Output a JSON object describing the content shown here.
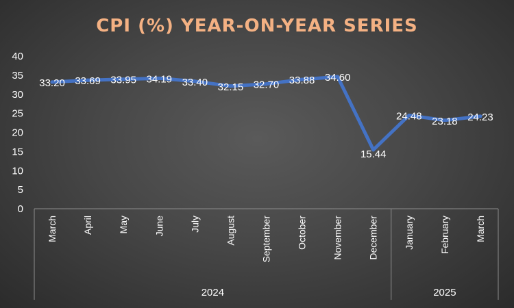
{
  "chart_data": {
    "type": "line",
    "title": "CPI (%) YEAR-ON-YEAR SERIES",
    "categories": [
      "March",
      "April",
      "May",
      "June",
      "July",
      "August",
      "September",
      "October",
      "November",
      "December",
      "January",
      "February",
      "March"
    ],
    "groups": [
      {
        "label": "2024",
        "count": 10
      },
      {
        "label": "2025",
        "count": 3
      }
    ],
    "series": [
      {
        "values": [
          33.2,
          33.69,
          33.95,
          34.19,
          33.4,
          32.15,
          32.7,
          33.88,
          34.6,
          15.44,
          24.48,
          23.18,
          24.23
        ],
        "labels": [
          "33.20",
          "33.69",
          "33.95",
          "34.19",
          "33.40",
          "32.15",
          "32.70",
          "33.88",
          "34.60",
          "15.44",
          "24.48",
          "23.18",
          "24.23"
        ]
      }
    ],
    "ylim": [
      0,
      40
    ],
    "yticks": [
      "0",
      "5",
      "10",
      "15",
      "20",
      "25",
      "30",
      "35",
      "40"
    ],
    "grid": false,
    "colors": {
      "line": "#4472c4",
      "title": "#f4b183",
      "text": "#ffffff",
      "axis": "#8c8c8c"
    }
  }
}
